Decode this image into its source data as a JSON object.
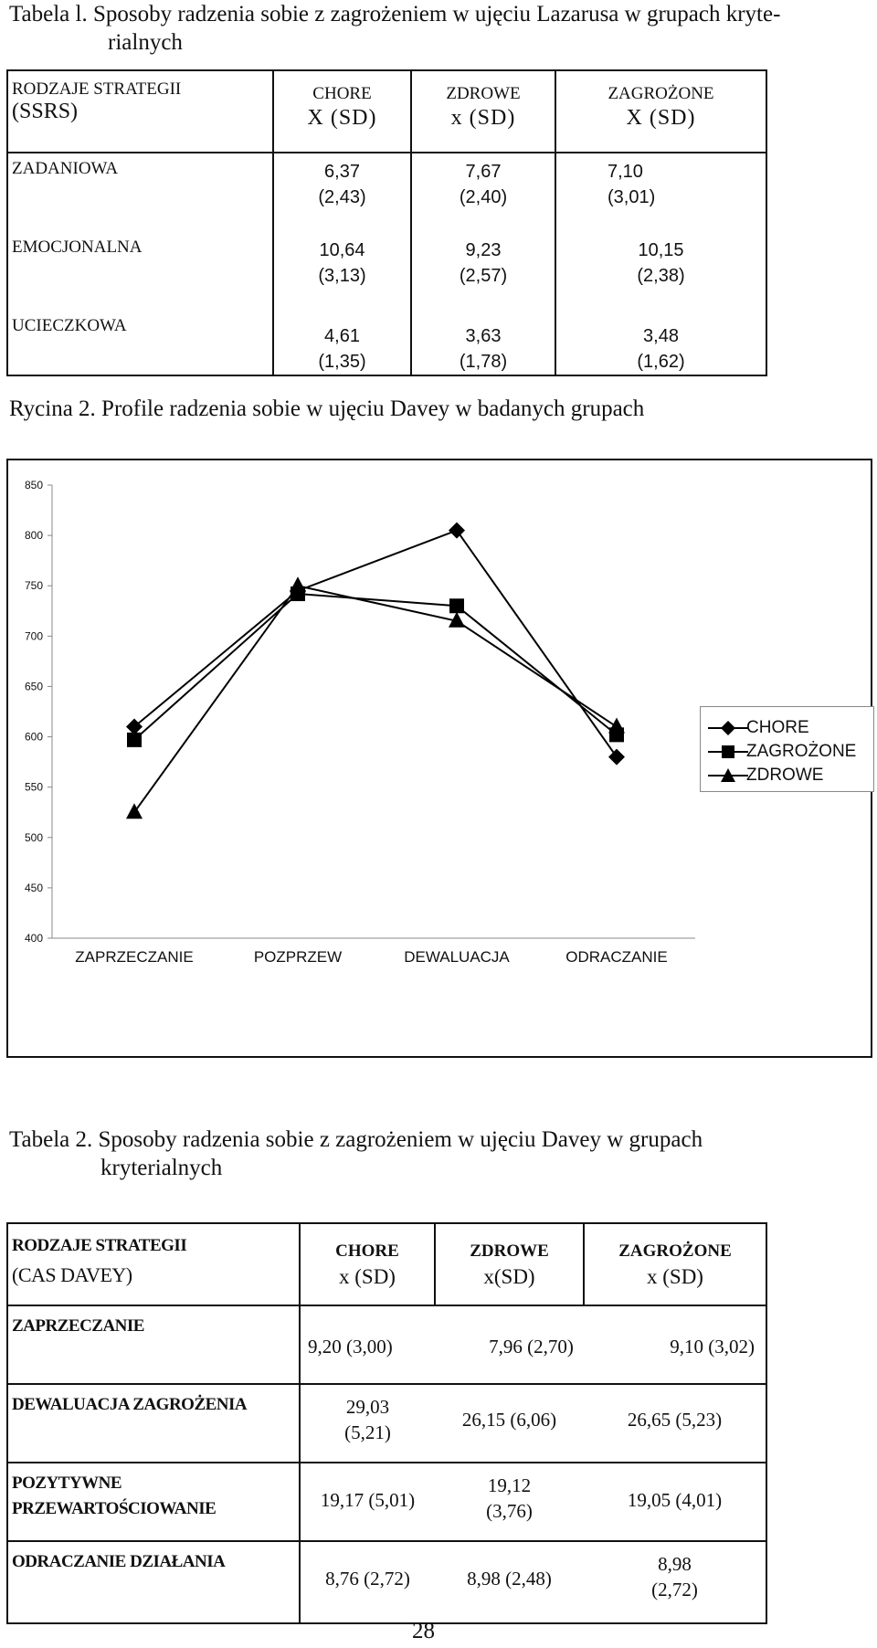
{
  "table1": {
    "caption_line1": "Tabela l. Sposoby radzenia sobie z zagrożeniem w ujęciu Lazarusa w grupach kryte-",
    "caption_line2": "rialnych",
    "header_label_1": "RODZAJE STRATEGII",
    "header_label_2": "(SSRS)",
    "columns": [
      {
        "name": "CHORE",
        "sub": "X (SD)"
      },
      {
        "name": "ZDROWE",
        "sub": "x (SD)"
      },
      {
        "name": "ZAGROŻONE",
        "sub": "X (SD)"
      }
    ],
    "rows": [
      {
        "label": "ZADANIOWA",
        "values": [
          [
            "6,37",
            "(2,43)"
          ],
          [
            "7,67",
            "(2,40)"
          ],
          [
            "7,10",
            "(3,01)"
          ]
        ]
      },
      {
        "label": "EMOCJONALNA",
        "values": [
          [
            "10,64",
            "(3,13)"
          ],
          [
            "9,23",
            "(2,57)"
          ],
          [
            "10,15",
            "(2,38)"
          ]
        ]
      },
      {
        "label": "UCIECZKOWA",
        "values": [
          [
            "4,61",
            "(1,35)"
          ],
          [
            "3,63",
            "(1,78)"
          ],
          [
            "3,48",
            "(1,62)"
          ]
        ]
      }
    ]
  },
  "figure": {
    "caption": "Rycina 2. Profile radzenia sobie w ujęciu Davey w badanych grupach"
  },
  "chart_data": {
    "type": "line",
    "categories": [
      "ZAPRZECZANIE",
      "POZPRZEW",
      "DEWALUACJA",
      "ODRACZANIE"
    ],
    "series": [
      {
        "name": "CHORE",
        "marker": "diamond",
        "values": [
          610,
          745,
          805,
          580
        ]
      },
      {
        "name": "ZAGROŻONE",
        "marker": "square",
        "values": [
          597,
          742,
          730,
          602
        ]
      },
      {
        "name": "ZDROWE",
        "marker": "triangle",
        "values": [
          525,
          750,
          715,
          610
        ]
      }
    ],
    "ylim": [
      400,
      850
    ],
    "yticks": [
      "400",
      "450",
      "500",
      "550",
      "600",
      "650",
      "700",
      "750",
      "800",
      "850"
    ],
    "legend": "right",
    "grid": false,
    "colors": {
      "line": "#000000",
      "background": "#ffffff"
    }
  },
  "table2": {
    "caption_line1": "Tabela 2. Sposoby radzenia sobie z zagrożeniem w ujęciu Davey w grupach",
    "caption_line2": "kryterialnych",
    "header_label_1": "RODZAJE STRATEGII",
    "header_label_2": "(CAS DAVEY)",
    "columns": [
      {
        "name": "CHORE",
        "sub": "x (SD)"
      },
      {
        "name": "ZDROWE",
        "sub": "x(SD)"
      },
      {
        "name": "ZAGROŻONE",
        "sub": "x (SD)"
      }
    ],
    "rows": [
      {
        "label": "ZAPRZECZANIE",
        "values": [
          "9,20 (3,00)",
          "7,96 (2,70)",
          "9,10 (3,02)"
        ]
      },
      {
        "label": "DEWALUACJA ZAGROŻENIA",
        "values": [
          "29,03 (5,21)",
          "26,15 (6,06)",
          "26,65 (5,23)"
        ]
      },
      {
        "label_1": "POZYTYWNE",
        "label_2": "PRZEWARTOŚCIOWANIE",
        "values": [
          "19,17 (5,01)",
          "19,12 (3,76)",
          "19,05 (4,01)"
        ]
      },
      {
        "label": "ODRACZANIE DZIAŁANIA",
        "values": [
          "8,76 (2,72)",
          "8,98 (2,48)",
          "8,98 (2,72)"
        ]
      }
    ]
  },
  "page_number": "28"
}
